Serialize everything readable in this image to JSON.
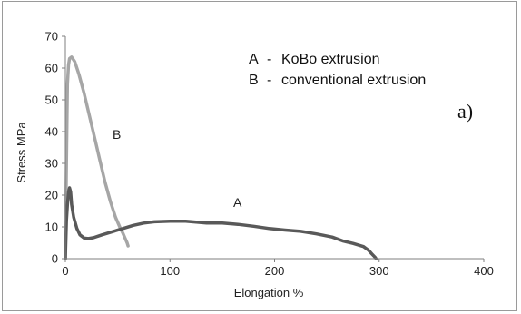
{
  "chart_data": {
    "type": "line",
    "title": "",
    "xlabel": "Elongation %",
    "ylabel": "Stress MPa",
    "xlim": [
      0,
      400
    ],
    "ylim": [
      0,
      70
    ],
    "x_ticks": [
      "0",
      "100",
      "200",
      "300",
      "400"
    ],
    "y_ticks": [
      "0",
      "10",
      "20",
      "30",
      "40",
      "50",
      "60",
      "70"
    ],
    "grid": false,
    "legend": [
      {
        "key": "A",
        "sep": "-",
        "text": "KoBo extrusion"
      },
      {
        "key": "B",
        "sep": "-",
        "text": "conventional extrusion"
      }
    ],
    "panel_label": "a)",
    "series": [
      {
        "name": "B",
        "color": "#a6a6a6",
        "points": [
          [
            0,
            0
          ],
          [
            1,
            30
          ],
          [
            2,
            55
          ],
          [
            3,
            61
          ],
          [
            4,
            63
          ],
          [
            6,
            63.5
          ],
          [
            9,
            62
          ],
          [
            13,
            58
          ],
          [
            18,
            52
          ],
          [
            23,
            45
          ],
          [
            28,
            38
          ],
          [
            33,
            31
          ],
          [
            38,
            24
          ],
          [
            43,
            18
          ],
          [
            48,
            13
          ],
          [
            52,
            10
          ],
          [
            55,
            8
          ],
          [
            57,
            6.5
          ],
          [
            59,
            5
          ],
          [
            60,
            4
          ]
        ]
      },
      {
        "name": "A",
        "color": "#595959",
        "points": [
          [
            0,
            0
          ],
          [
            1,
            12
          ],
          [
            2,
            17
          ],
          [
            3,
            21
          ],
          [
            4,
            22.3
          ],
          [
            5,
            21
          ],
          [
            6,
            17
          ],
          [
            8,
            13
          ],
          [
            11,
            9.5
          ],
          [
            14,
            7.5
          ],
          [
            18,
            6.5
          ],
          [
            22,
            6.3
          ],
          [
            27,
            6.6
          ],
          [
            35,
            7.5
          ],
          [
            45,
            8.5
          ],
          [
            55,
            9.5
          ],
          [
            65,
            10.5
          ],
          [
            75,
            11.2
          ],
          [
            85,
            11.6
          ],
          [
            100,
            11.8
          ],
          [
            115,
            11.8
          ],
          [
            125,
            11.5
          ],
          [
            135,
            11.2
          ],
          [
            150,
            11.2
          ],
          [
            165,
            10.8
          ],
          [
            180,
            10.2
          ],
          [
            195,
            9.5
          ],
          [
            210,
            9
          ],
          [
            225,
            8.6
          ],
          [
            240,
            7.8
          ],
          [
            255,
            6.8
          ],
          [
            265,
            5.6
          ],
          [
            275,
            4.8
          ],
          [
            285,
            3.8
          ],
          [
            290,
            2.6
          ],
          [
            293,
            1.5
          ],
          [
            296,
            0.5
          ],
          [
            297,
            0
          ]
        ]
      }
    ]
  }
}
